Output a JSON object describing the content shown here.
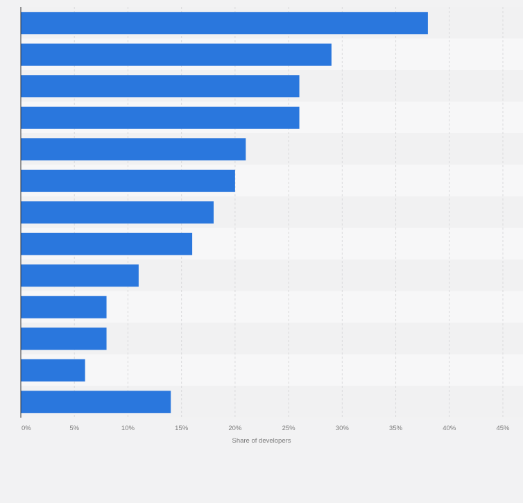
{
  "chart_data": {
    "type": "bar",
    "orientation": "horizontal",
    "title": "",
    "xlabel": "Share of developers",
    "ylabel": "",
    "xlim": [
      0,
      45
    ],
    "x_ticks": [
      0,
      5,
      10,
      15,
      20,
      25,
      30,
      35,
      40,
      45
    ],
    "x_tick_labels": [
      "0%",
      "5%",
      "10%",
      "15%",
      "20%",
      "25%",
      "30%",
      "35%",
      "40%",
      "45%"
    ],
    "grid": true,
    "categories": [
      "",
      "",
      "",
      "",
      "",
      "",
      "",
      "",
      "",
      "",
      "",
      "",
      ""
    ],
    "values": [
      38,
      29,
      26,
      26,
      21,
      20,
      18,
      16,
      11,
      8,
      8,
      6,
      14
    ],
    "bar_color": "#2a77dd"
  },
  "colors": {
    "background": "#f2f2f3",
    "band_light": "#f7f7f8",
    "band_dark": "#f1f1f2",
    "grid": "#d9d9db",
    "axis": "#333333",
    "tick_text": "#7a7a7a"
  }
}
